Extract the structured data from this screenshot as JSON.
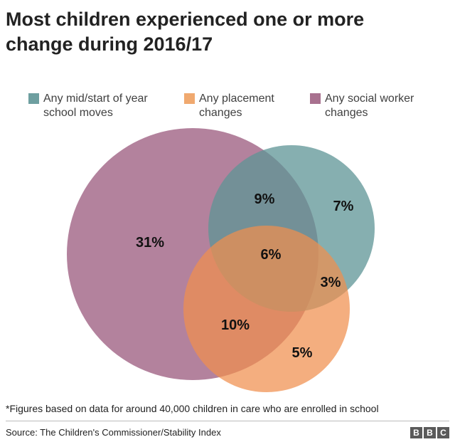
{
  "header": {
    "title_line1": "Most children experienced one or more",
    "title_line2": "change during 2016/17"
  },
  "legend": [
    {
      "line1": "Any mid/start of year",
      "line2": "school moves",
      "color": "#6e9fa0"
    },
    {
      "line1": "Any placement",
      "line2": "changes",
      "color": "#f0a96f"
    },
    {
      "line1": "Any social worker",
      "line2": "changes",
      "color": "#a8718f"
    }
  ],
  "venn": {
    "sets": [
      "Any mid/start of year school moves",
      "Any placement changes",
      "Any social worker changes"
    ],
    "colors": {
      "social_worker": "#a8718f",
      "school": "#6e9fa0",
      "placement": "#f0a96f"
    },
    "regions": {
      "social_worker_only": "31%",
      "school_and_social_worker": "9%",
      "school_only": "7%",
      "all_three": "6%",
      "school_and_placement": "3%",
      "placement_and_social_worker": "10%",
      "placement_only": "5%"
    }
  },
  "footer": {
    "footnote": "*Figures based on data for around 40,000 children in care who are enrolled in school",
    "source": "Source: The Children's Commissioner/Stability Index",
    "logo_letters": [
      "B",
      "B",
      "C"
    ]
  }
}
